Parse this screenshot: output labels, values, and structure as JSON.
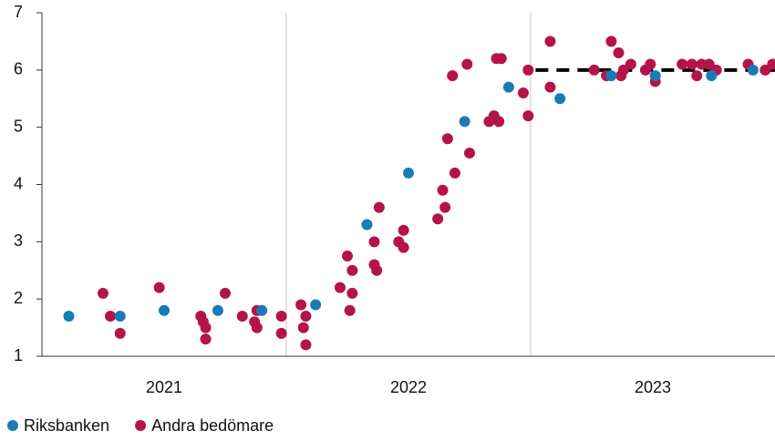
{
  "chart_data": {
    "type": "scatter",
    "xlim": [
      2021,
      2024
    ],
    "xticks": [
      2021,
      2022,
      2023
    ],
    "ylim": [
      1,
      7
    ],
    "yticks": [
      1,
      2,
      3,
      4,
      5,
      6,
      7
    ],
    "grid": true,
    "legend": "bottom-left",
    "series": [
      {
        "name": "Riksbanken",
        "color": "#1a7ab8",
        "x": [
          2021.11,
          2021.32,
          2021.5,
          2021.72,
          2021.9,
          2022.12,
          2022.33,
          2022.5,
          2022.73,
          2022.91,
          2023.12,
          2023.33,
          2023.51,
          2023.74,
          2023.91
        ],
        "values": [
          1.7,
          1.7,
          1.8,
          1.8,
          1.8,
          1.9,
          3.3,
          4.2,
          5.1,
          5.7,
          5.5,
          5.9,
          5.9,
          5.9,
          6.0
        ]
      },
      {
        "name": "Andra bedömare",
        "color": "#b5134b",
        "x": [
          2021.25,
          2021.28,
          2021.32,
          2021.48,
          2021.65,
          2021.66,
          2021.67,
          2021.67,
          2021.75,
          2021.82,
          2021.87,
          2021.88,
          2021.88,
          2021.98,
          2021.98,
          2022.06,
          2022.07,
          2022.08,
          2022.08,
          2022.22,
          2022.25,
          2022.26,
          2022.27,
          2022.27,
          2022.36,
          2022.37,
          2022.36,
          2022.38,
          2022.46,
          2022.48,
          2022.48,
          2022.62,
          2022.64,
          2022.65,
          2022.66,
          2022.69,
          2022.68,
          2022.74,
          2022.75,
          2022.83,
          2022.85,
          2022.87,
          2022.86,
          2022.88,
          2022.97,
          2022.99,
          2022.99,
          2023.08,
          2023.08,
          2023.26,
          2023.31,
          2023.33,
          2023.36,
          2023.37,
          2023.38,
          2023.41,
          2023.47,
          2023.49,
          2023.51,
          2023.62,
          2023.66,
          2023.68,
          2023.7,
          2023.73,
          2023.76,
          2023.89,
          2023.96,
          2023.99
        ],
        "values": [
          2.1,
          1.7,
          1.4,
          2.2,
          1.7,
          1.6,
          1.5,
          1.3,
          2.1,
          1.7,
          1.6,
          1.5,
          1.8,
          1.7,
          1.4,
          1.9,
          1.5,
          1.7,
          1.2,
          2.2,
          2.75,
          1.8,
          2.5,
          2.1,
          2.6,
          2.5,
          3.0,
          3.6,
          3.0,
          3.2,
          2.9,
          3.4,
          3.9,
          3.6,
          4.8,
          4.2,
          5.9,
          6.1,
          4.55,
          5.1,
          5.2,
          5.1,
          6.2,
          6.2,
          5.6,
          5.2,
          6.0,
          5.7,
          6.5,
          6.0,
          5.9,
          6.5,
          6.3,
          5.9,
          6.0,
          6.1,
          6.0,
          6.1,
          5.8,
          6.1,
          6.1,
          5.9,
          6.1,
          6.1,
          6.0,
          6.1,
          6.0,
          6.1
        ]
      }
    ],
    "lines": [
      {
        "color": "#000000",
        "dashed": true,
        "x": [
          2023.02,
          2024
        ],
        "values": [
          6,
          6
        ]
      }
    ]
  }
}
